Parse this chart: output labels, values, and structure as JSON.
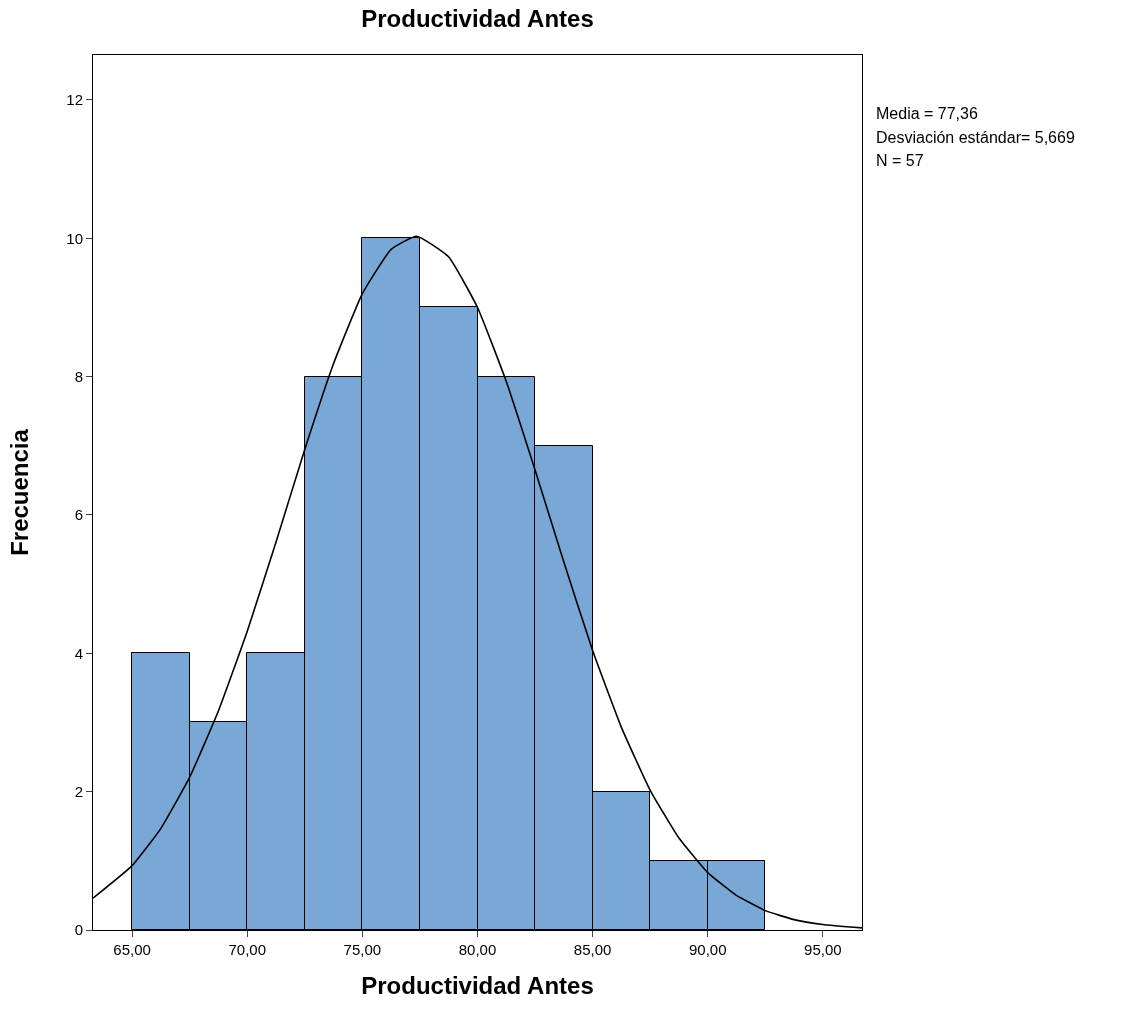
{
  "chart_data": {
    "type": "histogram",
    "title": "Productividad Antes",
    "xlabel": "Productividad Antes",
    "ylabel": "Frecuencia",
    "bins": [
      65,
      67.5,
      70,
      72.5,
      75,
      77.5,
      80,
      82.5,
      85,
      87.5,
      90,
      92.5
    ],
    "series": [
      {
        "color": "#79a8d6",
        "values": [
          4,
          3,
          4,
          8,
          10,
          9,
          8,
          7,
          2,
          1,
          1
        ]
      },
      {
        "type": "line",
        "color": "#000000",
        "x": [
          63.3,
          65,
          66.25,
          67.5,
          68.75,
          70,
          71.25,
          72.5,
          73.75,
          75,
          76.25,
          77.36,
          78.75,
          80,
          81.25,
          82.5,
          83.75,
          85,
          86.25,
          87.5,
          88.75,
          90,
          91.25,
          92.5,
          93.75,
          95,
          96.7
        ],
        "values": [
          0.46,
          0.93,
          1.47,
          2.21,
          3.17,
          4.32,
          5.61,
          6.95,
          8.19,
          9.2,
          9.84,
          10.03,
          9.73,
          9.0,
          7.93,
          6.65,
          5.32,
          4.04,
          2.93,
          2.02,
          1.33,
          0.83,
          0.5,
          0.28,
          0.15,
          0.08,
          0.03
        ]
      }
    ],
    "xlim": [
      63.3,
      96.7
    ],
    "ylim": [
      0,
      12.65
    ],
    "xticks": [
      {
        "value": 65,
        "label": "65,00"
      },
      {
        "value": 70,
        "label": "70,00"
      },
      {
        "value": 75,
        "label": "75,00"
      },
      {
        "value": 80,
        "label": "80,00"
      },
      {
        "value": 85,
        "label": "85,00"
      },
      {
        "value": 90,
        "label": "90,00"
      },
      {
        "value": 95,
        "label": "95,00"
      }
    ],
    "yticks": [
      0,
      2,
      4,
      6,
      8,
      10,
      12
    ],
    "annotations": [
      "Media = 77,36",
      "Desviación estándar= 5,669",
      "N = 57"
    ]
  }
}
